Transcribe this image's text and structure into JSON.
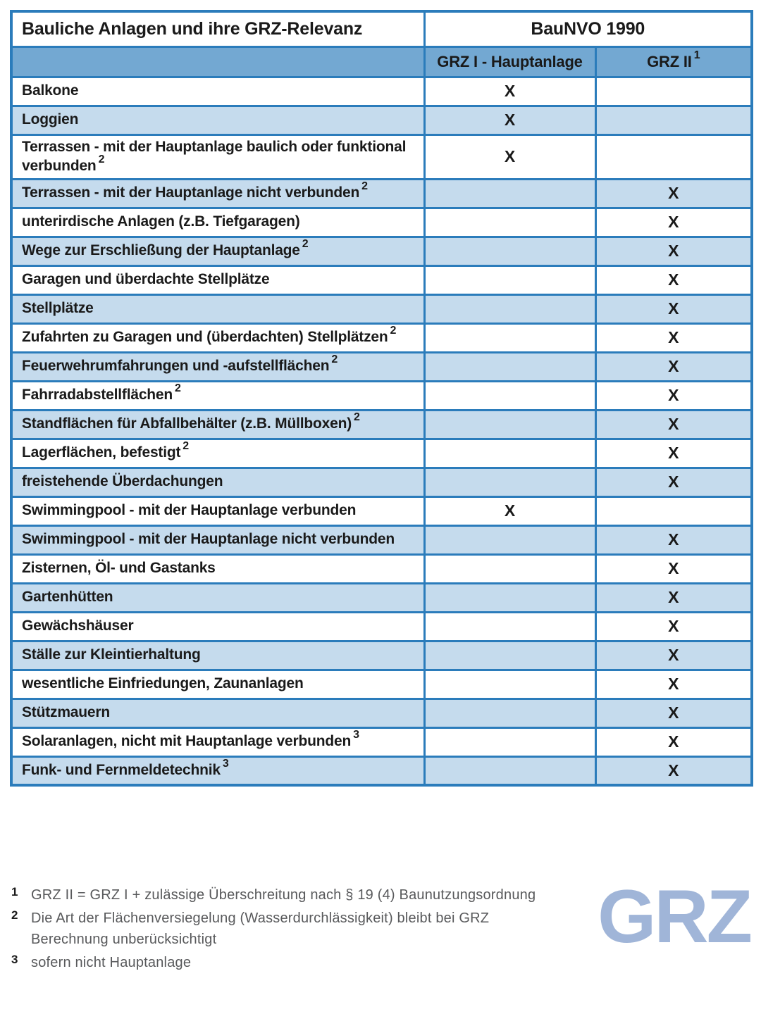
{
  "table": {
    "col1_header": "Bauliche Anlagen und ihre GRZ-Relevanz",
    "group_header": "BauNVO 1990",
    "col2_header": "GRZ I - Hauptanlage",
    "col3_header": "GRZ II",
    "col3_sup": "1",
    "rows": [
      {
        "label": "Balkone",
        "sup": "",
        "grz1": "X",
        "grz2": "",
        "tall": false
      },
      {
        "label": "Loggien",
        "sup": "",
        "grz1": "X",
        "grz2": "",
        "tall": false
      },
      {
        "label": "Terrassen - mit der Hauptanlage baulich oder funktional verbunden",
        "sup": "2",
        "grz1": "X",
        "grz2": "",
        "tall": true
      },
      {
        "label": "Terrassen - mit der Hauptanlage nicht verbunden",
        "sup": "2",
        "grz1": "",
        "grz2": "X",
        "tall": false
      },
      {
        "label": "unterirdische Anlagen (z.B. Tiefgaragen)",
        "sup": "",
        "grz1": "",
        "grz2": "X",
        "tall": false
      },
      {
        "label": "Wege zur Erschließung der Hauptanlage",
        "sup": "2",
        "grz1": "",
        "grz2": "X",
        "tall": false
      },
      {
        "label": "Garagen und überdachte Stellplätze",
        "sup": "",
        "grz1": "",
        "grz2": "X",
        "tall": false
      },
      {
        "label": "Stellplätze",
        "sup": "",
        "grz1": "",
        "grz2": "X",
        "tall": false
      },
      {
        "label": "Zufahrten zu Garagen und (überdachten) Stellplätzen",
        "sup": "2",
        "grz1": "",
        "grz2": "X",
        "tall": false
      },
      {
        "label": "Feuerwehrumfahrungen und -aufstellflächen",
        "sup": "2",
        "grz1": "",
        "grz2": "X",
        "tall": false
      },
      {
        "label": "Fahrradabstellflächen",
        "sup": "2",
        "grz1": "",
        "grz2": "X",
        "tall": false
      },
      {
        "label": "Standflächen für Abfallbehälter (z.B. Müllboxen)",
        "sup": "2",
        "grz1": "",
        "grz2": "X",
        "tall": false
      },
      {
        "label": "Lagerflächen, befestigt",
        "sup": "2",
        "grz1": "",
        "grz2": "X",
        "tall": false
      },
      {
        "label": "freistehende Überdachungen",
        "sup": "",
        "grz1": "",
        "grz2": "X",
        "tall": false
      },
      {
        "label": "Swimmingpool - mit der Hauptanlage verbunden",
        "sup": "",
        "grz1": "X",
        "grz2": "",
        "tall": false
      },
      {
        "label": "Swimmingpool - mit der Hauptanlage nicht verbunden",
        "sup": "",
        "grz1": "",
        "grz2": "X",
        "tall": false
      },
      {
        "label": "Zisternen, Öl- und Gastanks",
        "sup": "",
        "grz1": "",
        "grz2": "X",
        "tall": false
      },
      {
        "label": "Gartenhütten",
        "sup": "",
        "grz1": "",
        "grz2": "X",
        "tall": false
      },
      {
        "label": "Gewächshäuser",
        "sup": "",
        "grz1": "",
        "grz2": "X",
        "tall": false
      },
      {
        "label": "Ställe zur Kleintierhaltung",
        "sup": "",
        "grz1": "",
        "grz2": "X",
        "tall": false
      },
      {
        "label": "wesentliche Einfriedungen, Zaunanlagen",
        "sup": "",
        "grz1": "",
        "grz2": "X",
        "tall": false
      },
      {
        "label": "Stützmauern",
        "sup": "",
        "grz1": "",
        "grz2": "X",
        "tall": false
      },
      {
        "label": "Solaranlagen, nicht mit Hauptanlage verbunden",
        "sup": "3",
        "grz1": "",
        "grz2": "X",
        "tall": false
      },
      {
        "label": "Funk- und Fernmeldetechnik",
        "sup": "3",
        "grz1": "",
        "grz2": "X",
        "tall": false
      }
    ]
  },
  "footnotes": [
    {
      "num": "1",
      "text": "GRZ II = GRZ I + zulässige Überschreitung nach § 19 (4) Baunutzungsordnung"
    },
    {
      "num": "2",
      "text": "Die Art der Flächenversiegelung (Wasserdurchlässigkeit) bleibt bei GRZ Berechnung unberücksichtigt"
    },
    {
      "num": "3",
      "text": "sofern nicht Hauptanlage"
    }
  ],
  "logo": {
    "text": "GRZ"
  },
  "colors": {
    "border_blue": "#2b7cbb",
    "header_blue": "#73a8d2",
    "stripe_blue": "#c5dbed",
    "logo_blue": "#a0b5d8",
    "footnote_gray": "#58595b"
  }
}
